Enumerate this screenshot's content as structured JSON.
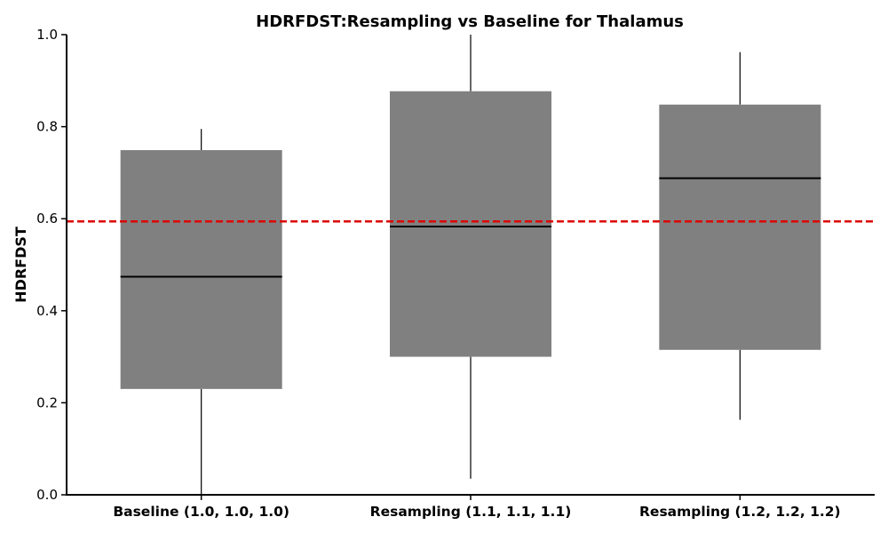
{
  "chart_data": {
    "type": "box",
    "title": "HDRFDST:Resampling vs Baseline for Thalamus",
    "xlabel": "",
    "ylabel": "HDRFDST",
    "ylim": [
      0.0,
      1.0
    ],
    "yticks": [
      "0.0",
      "0.2",
      "0.4",
      "0.6",
      "0.8",
      "1.0"
    ],
    "categories": [
      "Baseline (1.0, 1.0, 1.0)",
      "Resampling (1.1, 1.1, 1.1)",
      "Resampling (1.2, 1.2, 1.2)"
    ],
    "boxes": [
      {
        "whisker_low": 0.0,
        "q1": 0.23,
        "median": 0.474,
        "q3": 0.749,
        "whisker_high": 0.795
      },
      {
        "whisker_low": 0.035,
        "q1": 0.3,
        "median": 0.583,
        "q3": 0.877,
        "whisker_high": 1.0
      },
      {
        "whisker_low": 0.163,
        "q1": 0.315,
        "median": 0.688,
        "q3": 0.848,
        "whisker_high": 0.962
      }
    ],
    "reference_line": {
      "value": 0.594,
      "style": "dashed"
    },
    "grid": false,
    "colors": {
      "box": "#808080",
      "median": "#000000",
      "whisker": "#000000",
      "reference": "#dd0000"
    }
  }
}
